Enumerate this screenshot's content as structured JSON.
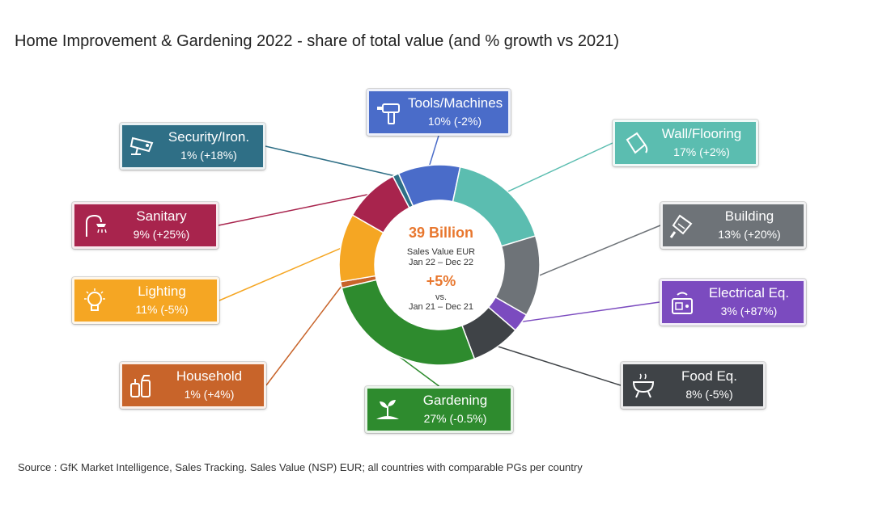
{
  "title": "Home Improvement & Gardening 2022 - share of total value (and % growth vs 2021)",
  "source": "Source : GfK Market Intelligence, Sales Tracking. Sales Value (NSP) EUR; all countries with comparable PGs per country",
  "center": {
    "total": "39 Billion",
    "line1": "Sales Value EUR",
    "line2": "Jan 22 – Dec 22",
    "growth": "+5%",
    "vs": "vs.",
    "line3": "Jan 21 – Dec 21"
  },
  "chart_data": {
    "type": "pie",
    "variant": "donut",
    "title": "Home Improvement & Gardening 2022 - share of total value (and % growth vs 2021)",
    "slices": [
      {
        "name": "Tools/Machines",
        "share": 10,
        "growth": "-2%",
        "label": "10% (-2%)",
        "color": "#4a6cc9",
        "icon": "drill-icon"
      },
      {
        "name": "Wall/Flooring",
        "share": 17,
        "growth": "+2%",
        "label": "17% (+2%)",
        "color": "#5bbdb0",
        "icon": "paint-bucket-icon"
      },
      {
        "name": "Building",
        "share": 13,
        "growth": "+20%",
        "label": "13% (+20%)",
        "color": "#6e7378",
        "icon": "trowel-icon"
      },
      {
        "name": "Electrical Eq.",
        "share": 3,
        "growth": "+87%",
        "label": "3% (+87%)",
        "color": "#7b4bbf",
        "icon": "smart-device-icon"
      },
      {
        "name": "Food Eq.",
        "share": 8,
        "growth": "-5%",
        "label": "8% (-5%)",
        "color": "#3f4347",
        "icon": "grill-icon"
      },
      {
        "name": "Gardening",
        "share": 27,
        "growth": "-0.5%",
        "label": "27% (-0.5%)",
        "color": "#2e8b2e",
        "icon": "sprout-icon"
      },
      {
        "name": "Household",
        "share": 1,
        "growth": "+4%",
        "label": "1% (+4%)",
        "color": "#c8642a",
        "icon": "cleaning-supplies-icon"
      },
      {
        "name": "Lighting",
        "share": 11,
        "growth": "-5%",
        "label": "11% (-5%)",
        "color": "#f5a623",
        "icon": "light-bulb-icon"
      },
      {
        "name": "Sanitary",
        "share": 9,
        "growth": "+25%",
        "label": "9% (+25%)",
        "color": "#a8244d",
        "icon": "shower-icon"
      },
      {
        "name": "Security/Iron.",
        "share": 1,
        "growth": "+18%",
        "label": "1% (+18%)",
        "color": "#2f6f86",
        "icon": "security-camera-icon"
      }
    ]
  }
}
